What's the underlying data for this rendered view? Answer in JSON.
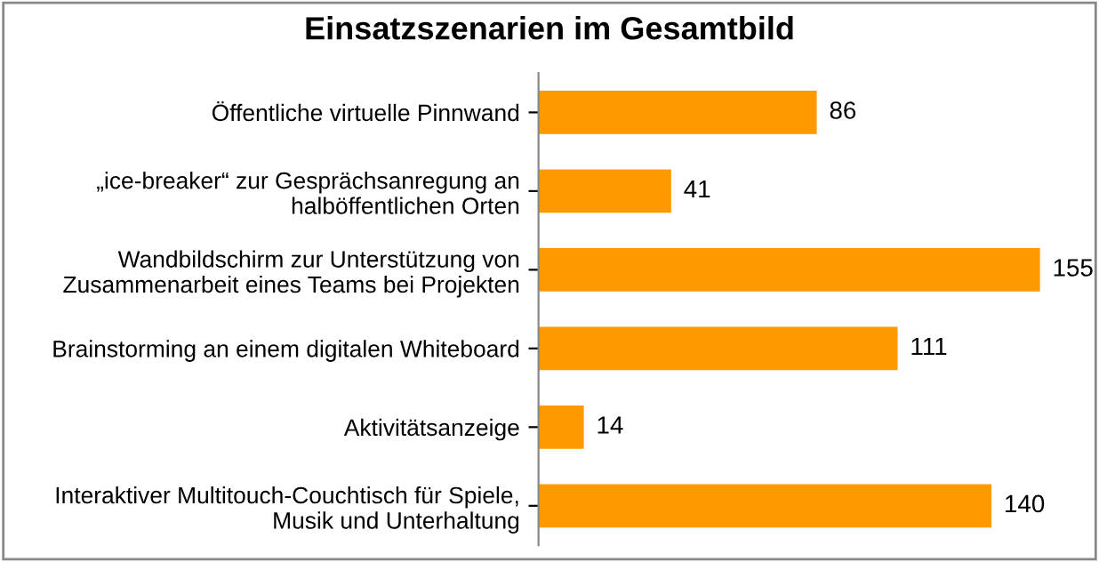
{
  "chart_data": {
    "type": "bar",
    "orientation": "horizontal",
    "title": "Einsatzszenarien im Gesamtbild",
    "categories": [
      "Öffentliche virtuelle Pinnwand",
      "„ice-breaker“ zur Gesprächsanregung an\nhalböffentlichen Orten",
      "Wandbildschirm zur Unterstützung von\nZusammenarbeit eines Teams bei Projekten",
      "Brainstorming an einem digitalen Whiteboard",
      "Aktivitätsanzeige",
      "Interaktiver Multitouch-Couchtisch für Spiele,\nMusik und Unterhaltung"
    ],
    "values": [
      86,
      41,
      155,
      111,
      14,
      140
    ],
    "color": "#ff9900",
    "data_labels": true,
    "grid": false,
    "legend": false
  }
}
